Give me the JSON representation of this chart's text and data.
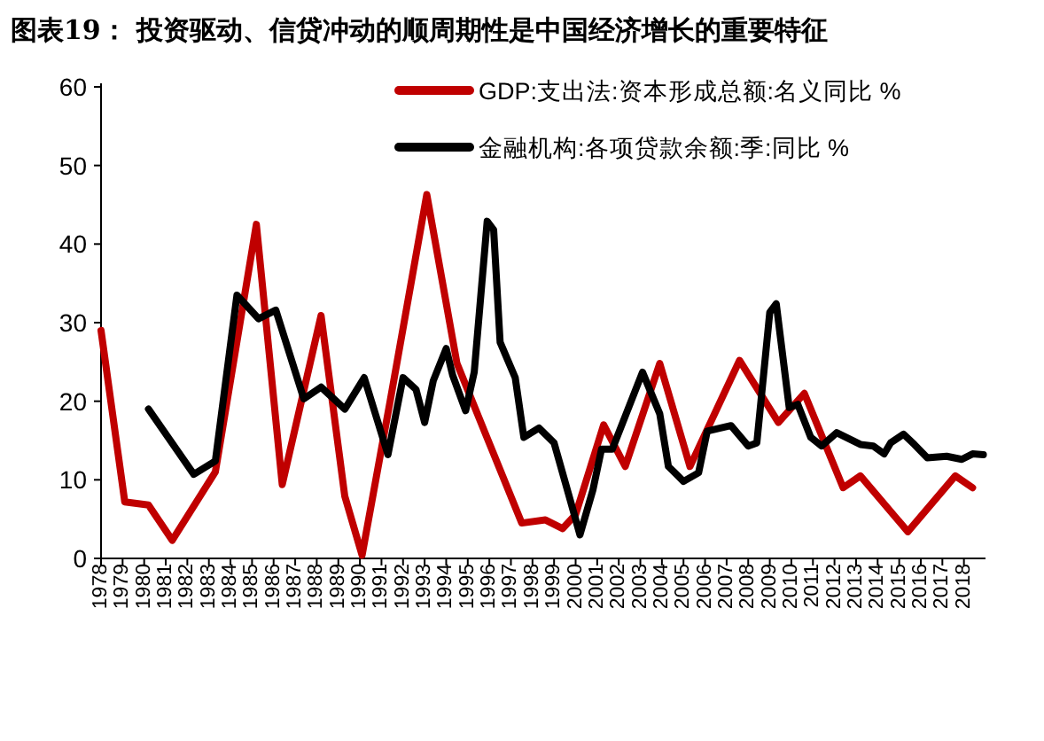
{
  "chart_data": {
    "type": "line",
    "title": "图表19：  投资驱动、信贷冲动的顺周期性是中国经济增长的重要特征",
    "xlim": [
      1978,
      2019
    ],
    "xticks": [
      1978,
      1979,
      1980,
      1981,
      1982,
      1983,
      1984,
      1985,
      1986,
      1987,
      1988,
      1989,
      1990,
      1991,
      1992,
      1993,
      1994,
      1995,
      1996,
      1997,
      1998,
      1999,
      2000,
      2001,
      2002,
      2003,
      2004,
      2005,
      2006,
      2007,
      2008,
      2009,
      2010,
      2011,
      2012,
      2013,
      2014,
      2015,
      2016,
      2017,
      2018
    ],
    "ylim": [
      0,
      60
    ],
    "yticks": [
      0,
      10,
      20,
      30,
      40,
      50,
      60
    ],
    "legend": "top right",
    "grid": false,
    "series": [
      {
        "name": "GDP:支出法:资本形成总额:名义同比 %",
        "color": "#c00000",
        "x": [
          1978,
          1979.1,
          1980.2,
          1981.3,
          1983.3,
          1985.2,
          1986.4,
          1988.2,
          1989.3,
          1990.1,
          1991.4,
          1993.1,
          1994.5,
          1995.8,
          1997.5,
          1998.6,
          1999.4,
          2000,
          2001.3,
          2002.3,
          2003.9,
          2005.3,
          2007.6,
          2009.4,
          2010.6,
          2012.4,
          2013.2,
          2015.4,
          2017.6,
          2018.4
        ],
        "values": [
          29,
          7.2,
          6.8,
          2.3,
          11,
          42.5,
          9.4,
          30.9,
          7.9,
          0.4,
          20,
          46.3,
          24.8,
          16,
          4.5,
          4.9,
          3.8,
          5.6,
          17,
          11.7,
          24.8,
          11.7,
          25.2,
          17.3,
          21,
          9,
          10.5,
          3.4,
          10.5,
          9
        ]
      },
      {
        "name": "金融机构:各项贷款余额:季:同比 %",
        "color": "#000000",
        "x": [
          1980.2,
          1982.3,
          1983.3,
          1984.3,
          1985.3,
          1986.1,
          1987.4,
          1988.2,
          1989.3,
          1990.2,
          1991.3,
          1992.0,
          1992.6,
          1993.0,
          1993.4,
          1994.0,
          1994.3,
          1994.9,
          1995.3,
          1995.9,
          1996.2,
          1996.5,
          1997.2,
          1997.6,
          1998.3,
          1999.0,
          1999.7,
          2000.2,
          2000.8,
          2001.2,
          2001.7,
          2003.1,
          2003.9,
          2004.3,
          2005.0,
          2005.7,
          2006.1,
          2007.2,
          2008.0,
          2008.4,
          2009.0,
          2009.3,
          2009.9,
          2010.3,
          2010.9,
          2011.4,
          2012.1,
          2013.2,
          2013.8,
          2014.3,
          2014.6,
          2015.2,
          2015.7,
          2016.3,
          2017.2,
          2017.9,
          2018.4,
          2018.9
        ],
        "values": [
          19,
          10.7,
          12.4,
          33.5,
          30.5,
          31.6,
          20.3,
          21.8,
          19,
          23,
          13.2,
          23,
          21.5,
          17.3,
          22.6,
          26.7,
          23.3,
          18.8,
          23.7,
          42.9,
          41.8,
          27.5,
          23,
          15.4,
          16.6,
          14.7,
          7.9,
          3,
          8.7,
          13.9,
          13.9,
          23.7,
          18.4,
          11.7,
          9.8,
          10.9,
          16.2,
          16.9,
          14.3,
          14.7,
          31.3,
          32.4,
          19.2,
          19.6,
          15.4,
          14.3,
          16,
          14.5,
          14.3,
          13.3,
          14.7,
          15.8,
          14.5,
          12.8,
          13,
          12.6,
          13.3,
          13.2
        ]
      }
    ]
  }
}
